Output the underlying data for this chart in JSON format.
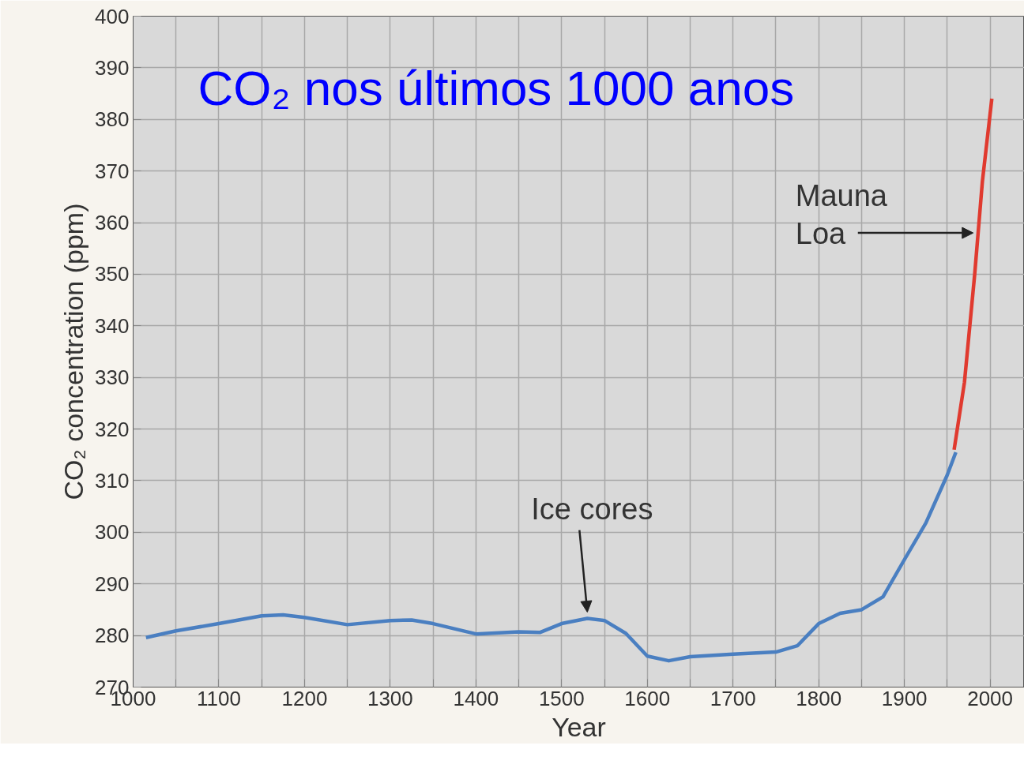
{
  "chart_data": {
    "type": "line",
    "title": "CO₂ nos últimos 1000 anos",
    "xlabel": "Year",
    "ylabel": "CO₂ concentration (ppm)",
    "series": [
      {
        "color": "#4a7fc1",
        "x": [
          1015,
          1050,
          1100,
          1150,
          1175,
          1200,
          1250,
          1300,
          1325,
          1350,
          1400,
          1450,
          1475,
          1500,
          1530,
          1550,
          1575,
          1600,
          1625,
          1650,
          1700,
          1750,
          1775,
          1800,
          1825,
          1850,
          1875,
          1900,
          1925,
          1950,
          1960
        ],
        "values": [
          279.6,
          280.9,
          282.3,
          283.8,
          284.0,
          283.5,
          282.1,
          282.9,
          283.0,
          282.3,
          280.3,
          280.7,
          280.6,
          282.3,
          283.3,
          282.9,
          280.4,
          276.0,
          275.1,
          275.9,
          276.4,
          276.8,
          278.0,
          282.3,
          284.3,
          285.0,
          287.5,
          294.7,
          301.8,
          311.1,
          315.5
        ]
      },
      {
        "color": "#e03a2f",
        "x": [
          1958,
          1970,
          1982,
          1991,
          2002
        ],
        "values": [
          316,
          329,
          350,
          368,
          384
        ]
      }
    ],
    "xlim": [
      1000,
      2040
    ],
    "ylim": [
      270,
      400
    ],
    "xticks": [
      1000,
      {
        "value": 1050,
        "label": null
      },
      1100,
      {
        "value": 1150,
        "label": null
      },
      1200,
      {
        "value": 1250,
        "label": null
      },
      1300,
      {
        "value": 1350,
        "label": null
      },
      1400,
      {
        "value": 1450,
        "label": null
      },
      1500,
      {
        "value": 1550,
        "label": null
      },
      1600,
      {
        "value": 1650,
        "label": null
      },
      1700,
      {
        "value": 1750,
        "label": null
      },
      1800,
      {
        "value": 1850,
        "label": null
      },
      1900,
      {
        "value": 1950,
        "label": null
      },
      2000
    ],
    "yticks": [
      270,
      280,
      290,
      300,
      310,
      320,
      330,
      340,
      350,
      360,
      370,
      380,
      390,
      400
    ],
    "grid": true,
    "annotations": [
      {
        "text": "Ice cores",
        "x": 1530,
        "y": 283.3
      },
      {
        "text": "Mauna\nLoa",
        "x": 1984,
        "y": 358
      }
    ]
  }
}
